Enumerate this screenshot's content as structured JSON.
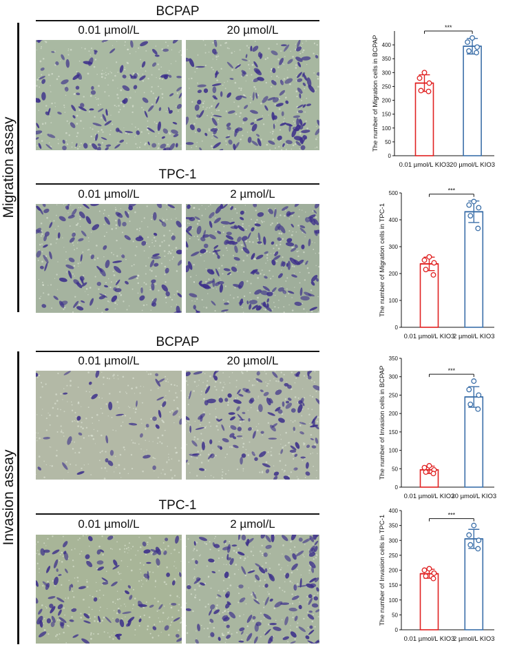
{
  "sections": [
    {
      "label": "Migration assay"
    },
    {
      "label": "Invasion assay"
    }
  ],
  "panels": [
    {
      "title": "BCPAP",
      "conditions": [
        "0.01 µmol/L",
        "20 µmol/L"
      ]
    },
    {
      "title": "TPC-1",
      "conditions": [
        "0.01 µmol/L",
        "2 µmol/L"
      ]
    },
    {
      "title": "BCPAP",
      "conditions": [
        "0.01 µmol/L",
        "20 µmol/L"
      ]
    },
    {
      "title": "TPC-1",
      "conditions": [
        "0.01 µmol/L",
        "2 µmol/L"
      ]
    }
  ],
  "colors": {
    "control": "#e02020",
    "treated": "#3a6ea8",
    "stain": "#3b2e8a"
  },
  "chart_data": [
    {
      "type": "bar",
      "categories": [
        "0.01 µmol/L KIO3",
        "20 µmol/L KIO3"
      ],
      "values": [
        262,
        395
      ],
      "errors": [
        30,
        28
      ],
      "points": [
        [
          300,
          280,
          262,
          235,
          232
        ],
        [
          425,
          410,
          392,
          378,
          372
        ]
      ],
      "ylabel": "The number of Migration cells in BCPAP",
      "ylim": [
        0,
        450
      ],
      "yticks": [
        0,
        50,
        100,
        150,
        200,
        250,
        300,
        350,
        400
      ],
      "significance": "***"
    },
    {
      "type": "bar",
      "categories": [
        "0.01 µmol/L KIO3",
        "2 µmol/L KIO3"
      ],
      "values": [
        236,
        430
      ],
      "errors": [
        25,
        40
      ],
      "points": [
        [
          262,
          250,
          240,
          215,
          195
        ],
        [
          468,
          455,
          445,
          415,
          368
        ]
      ],
      "ylabel": "The number of Migration cells in TPC-1",
      "ylim": [
        0,
        500
      ],
      "yticks": [
        0,
        100,
        200,
        300,
        400,
        500
      ],
      "significance": "***"
    },
    {
      "type": "bar",
      "categories": [
        "0.01 µmol/L KIO3",
        "20 µmol/L KIO3"
      ],
      "values": [
        47,
        245
      ],
      "errors": [
        10,
        28
      ],
      "points": [
        [
          58,
          53,
          47,
          41,
          37
        ],
        [
          288,
          265,
          250,
          225,
          212
        ]
      ],
      "ylabel": "The number of Invasion cells in BCPAP",
      "ylim": [
        0,
        350
      ],
      "yticks": [
        0,
        50,
        100,
        150,
        200,
        250,
        300,
        350
      ],
      "significance": "***"
    },
    {
      "type": "bar",
      "categories": [
        "0.01 µmol/L KIO3",
        "2 µmol/L KIO3"
      ],
      "values": [
        188,
        305
      ],
      "errors": [
        15,
        32
      ],
      "points": [
        [
          205,
          200,
          190,
          180,
          172
        ],
        [
          350,
          318,
          300,
          285,
          272
        ]
      ],
      "ylabel": "The number of Invasion cells in TPC-1",
      "ylim": [
        0,
        400
      ],
      "yticks": [
        0,
        50,
        100,
        150,
        200,
        250,
        300,
        350,
        400
      ],
      "significance": "***"
    }
  ]
}
